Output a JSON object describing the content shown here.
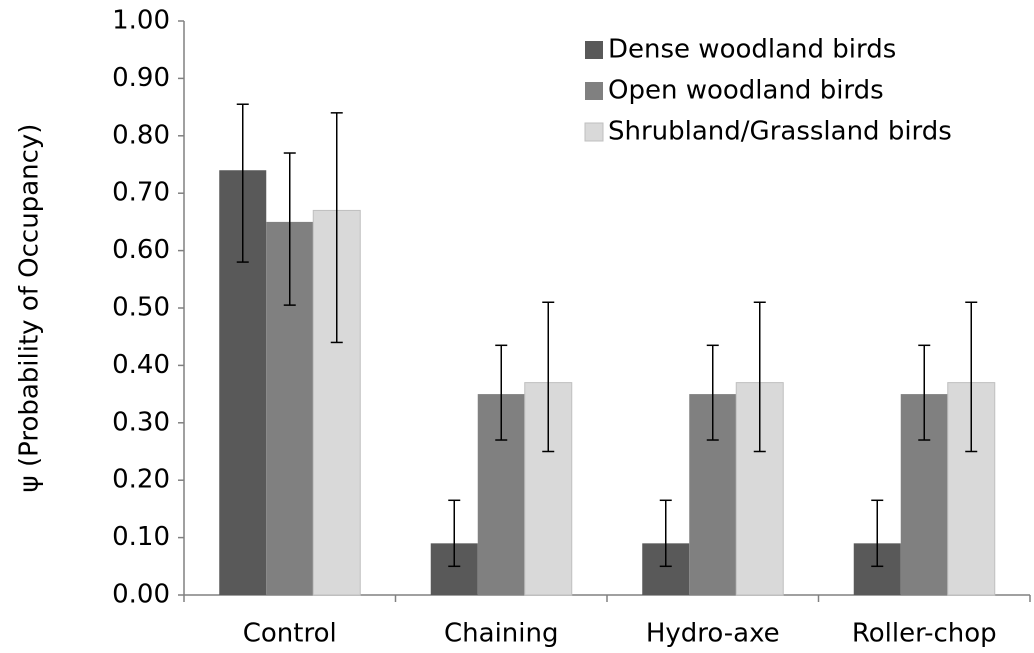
{
  "chart_data": {
    "type": "bar",
    "y_label": "ψ (Probability of Occupancy)",
    "categories": [
      "Control",
      "Chaining",
      "Hydro-axe",
      "Roller-chop"
    ],
    "series": [
      {
        "name": "Dense woodland birds",
        "color": "#595959",
        "values": [
          0.74,
          0.09,
          0.09,
          0.09
        ],
        "lower": [
          0.58,
          0.05,
          0.05,
          0.05
        ],
        "upper": [
          0.855,
          0.165,
          0.165,
          0.165
        ]
      },
      {
        "name": "Open woodland birds",
        "color": "#808080",
        "values": [
          0.65,
          0.35,
          0.35,
          0.35
        ],
        "lower": [
          0.505,
          0.27,
          0.27,
          0.27
        ],
        "upper": [
          0.77,
          0.435,
          0.435,
          0.435
        ]
      },
      {
        "name": "Shrubland/Grassland birds",
        "color": "#d9d9d9",
        "values": [
          0.67,
          0.37,
          0.37,
          0.37
        ],
        "lower": [
          0.44,
          0.25,
          0.25,
          0.25
        ],
        "upper": [
          0.84,
          0.51,
          0.51,
          0.51
        ]
      }
    ],
    "ylim": [
      0,
      1
    ],
    "yticks": [
      {
        "value": 0,
        "label": "0.00"
      },
      {
        "value": 0.1,
        "label": "0.10"
      },
      {
        "value": 0.2,
        "label": "0.20"
      },
      {
        "value": 0.3,
        "label": "0.30"
      },
      {
        "value": 0.4,
        "label": "0.40"
      },
      {
        "value": 0.5,
        "label": "0.50"
      },
      {
        "value": 0.6,
        "label": "0.60"
      },
      {
        "value": 0.7,
        "label": "0.70"
      },
      {
        "value": 0.8,
        "label": "0.80"
      },
      {
        "value": 0.9,
        "label": "0.90"
      },
      {
        "value": 1,
        "label": "1.00"
      }
    ],
    "grid": false,
    "legend": "top-right"
  }
}
